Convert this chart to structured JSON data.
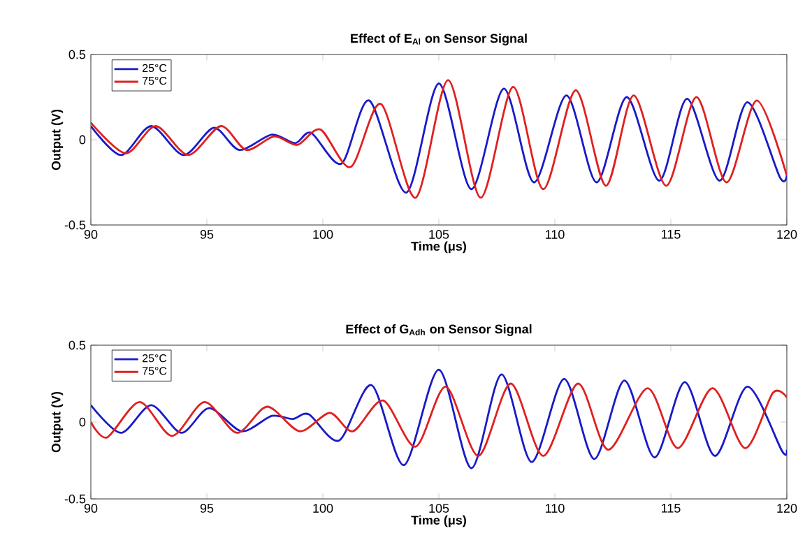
{
  "chart_data": [
    {
      "type": "line",
      "title": "Effect of E$_{Al}$ on Sensor Signal",
      "xlabel": "Time (μs)",
      "ylabel": "Output (V)",
      "xlim": [
        90,
        120
      ],
      "ylim": [
        -0.5,
        0.5
      ],
      "xticks": [
        90,
        95,
        100,
        105,
        110,
        115,
        120
      ],
      "yticks": [
        -0.5,
        0,
        0.5
      ],
      "legend": "top left",
      "marker": "none",
      "line_style": "solid",
      "series": [
        {
          "name": "25°C",
          "color": "#1a1ac8",
          "x": [
            90,
            91.3,
            92.6,
            94.0,
            95.3,
            96.4,
            97.8,
            98.8,
            99.5,
            100.8,
            102.0,
            103.6,
            105.0,
            106.4,
            107.8,
            109.1,
            110.5,
            111.8,
            113.1,
            114.5,
            115.7,
            117.1,
            118.3,
            119.7,
            120
          ],
          "values": [
            0.08,
            -0.09,
            0.08,
            -0.09,
            0.07,
            -0.06,
            0.03,
            -0.02,
            0.04,
            -0.14,
            0.23,
            -0.31,
            0.33,
            -0.29,
            0.3,
            -0.25,
            0.26,
            -0.25,
            0.25,
            -0.24,
            0.24,
            -0.24,
            0.22,
            -0.22,
            -0.21
          ]
        },
        {
          "name": "75°C",
          "color": "#e02020",
          "x": [
            90,
            91.5,
            92.8,
            94.2,
            95.6,
            96.7,
            97.9,
            98.9,
            99.9,
            101.2,
            102.5,
            104.0,
            105.4,
            106.8,
            108.2,
            109.5,
            110.9,
            112.2,
            113.4,
            114.8,
            116.1,
            117.4,
            118.7,
            120
          ],
          "values": [
            0.1,
            -0.08,
            0.08,
            -0.09,
            0.08,
            -0.06,
            0.02,
            -0.03,
            0.06,
            -0.16,
            0.21,
            -0.34,
            0.35,
            -0.34,
            0.31,
            -0.29,
            0.29,
            -0.27,
            0.26,
            -0.27,
            0.25,
            -0.25,
            0.23,
            -0.21
          ]
        }
      ]
    },
    {
      "type": "line",
      "title": "Effect of G$_{Adh}$ on Sensor Signal",
      "xlabel": "Time (μs)",
      "ylabel": "Output (V)",
      "xlim": [
        90,
        120
      ],
      "ylim": [
        -0.5,
        0.5
      ],
      "xticks": [
        90,
        95,
        100,
        105,
        110,
        115,
        120
      ],
      "yticks": [
        -0.5,
        0,
        0.5
      ],
      "legend": "top left",
      "marker": "none",
      "line_style": "solid",
      "series": [
        {
          "name": "25°C",
          "color": "#1a1ac8",
          "x": [
            90,
            91.3,
            92.6,
            93.9,
            95.1,
            96.5,
            97.8,
            98.7,
            99.4,
            100.7,
            102.1,
            103.5,
            105.0,
            106.4,
            107.7,
            109.0,
            110.4,
            111.7,
            113.0,
            114.3,
            115.6,
            116.9,
            118.3,
            119.8,
            120
          ],
          "values": [
            0.11,
            -0.07,
            0.11,
            -0.07,
            0.09,
            -0.06,
            0.04,
            0.02,
            0.05,
            -0.12,
            0.24,
            -0.28,
            0.34,
            -0.3,
            0.31,
            -0.26,
            0.28,
            -0.24,
            0.27,
            -0.23,
            0.26,
            -0.22,
            0.23,
            -0.19,
            -0.18
          ]
        },
        {
          "name": "75°C",
          "color": "#e02020",
          "x": [
            90,
            90.7,
            92.1,
            93.5,
            94.9,
            96.3,
            97.6,
            99.0,
            100.3,
            101.3,
            102.6,
            104.0,
            105.3,
            106.7,
            108.1,
            109.5,
            111.0,
            112.3,
            114.0,
            115.3,
            116.8,
            118.2,
            119.4,
            120
          ],
          "values": [
            0.0,
            -0.1,
            0.13,
            -0.09,
            0.13,
            -0.07,
            0.1,
            -0.06,
            0.06,
            -0.06,
            0.14,
            -0.16,
            0.23,
            -0.22,
            0.25,
            -0.22,
            0.25,
            -0.18,
            0.22,
            -0.17,
            0.22,
            -0.17,
            0.19,
            0.16
          ]
        }
      ]
    }
  ]
}
